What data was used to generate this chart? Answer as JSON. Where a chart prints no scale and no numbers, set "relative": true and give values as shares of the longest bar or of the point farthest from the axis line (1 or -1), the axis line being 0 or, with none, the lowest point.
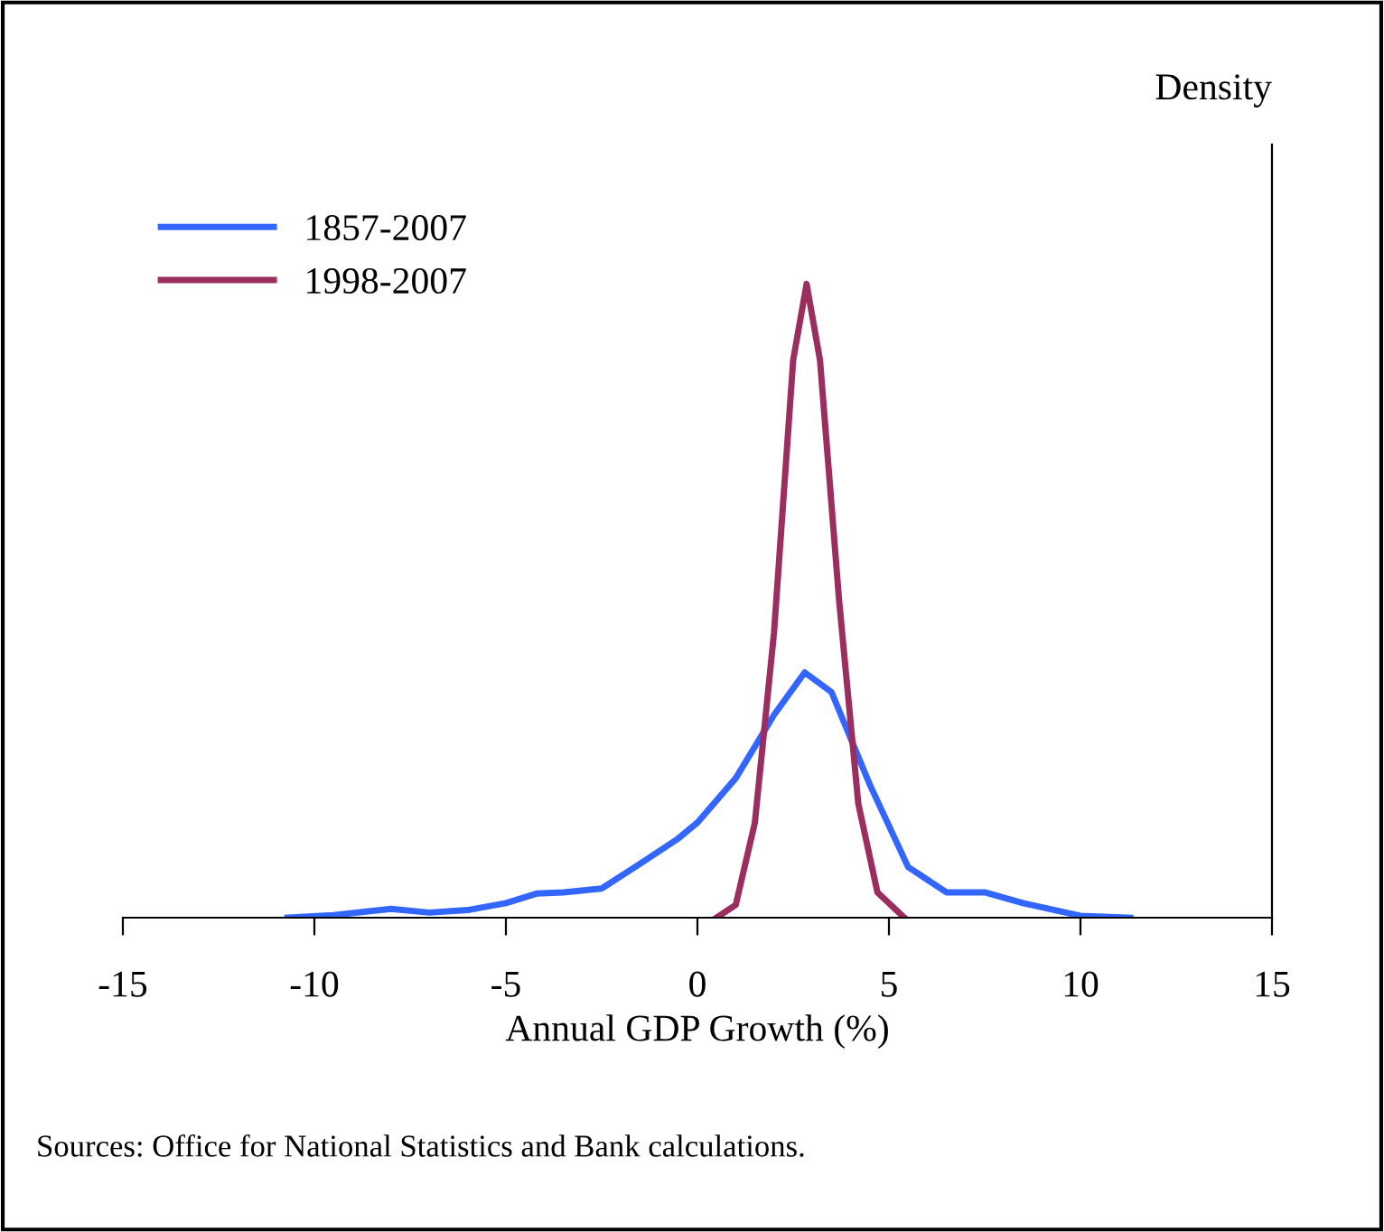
{
  "chart_data": {
    "type": "line",
    "relative": true,
    "xlabel": "Annual GDP Growth (%)",
    "ylabel": "Density",
    "xlim": [
      -15,
      15
    ],
    "xticks": [
      -15,
      -10,
      -5,
      0,
      5,
      10,
      15
    ],
    "grid": false,
    "legend": "top left",
    "marker": "none",
    "line_style": "solid",
    "series": [
      {
        "name": "1857-2007",
        "color": "#3366ff",
        "x": [
          -10.7,
          -9.5,
          -8,
          -7,
          -6,
          -5,
          -4.2,
          -3.5,
          -2.5,
          -1.5,
          -0.5,
          0,
          1,
          2,
          2.8,
          3.5,
          4.5,
          5.5,
          6.5,
          7.5,
          8.5,
          10,
          11.3
        ],
        "values": [
          0,
          0.004,
          0.014,
          0.008,
          0.012,
          0.023,
          0.038,
          0.04,
          0.046,
          0.085,
          0.125,
          0.15,
          0.22,
          0.32,
          0.387,
          0.356,
          0.21,
          0.08,
          0.04,
          0.04,
          0.023,
          0.003,
          0
        ]
      },
      {
        "name": "1998-2007",
        "color": "#9b2d5f",
        "x": [
          0.5,
          1.0,
          1.5,
          2.0,
          2.5,
          2.85,
          3.2,
          3.7,
          4.2,
          4.7,
          5.4
        ],
        "values": [
          0,
          0.02,
          0.15,
          0.45,
          0.88,
          1.0,
          0.88,
          0.5,
          0.18,
          0.04,
          0
        ]
      }
    ],
    "annotations": [
      "Sources: Office for National Statistics and Bank calculations."
    ]
  }
}
